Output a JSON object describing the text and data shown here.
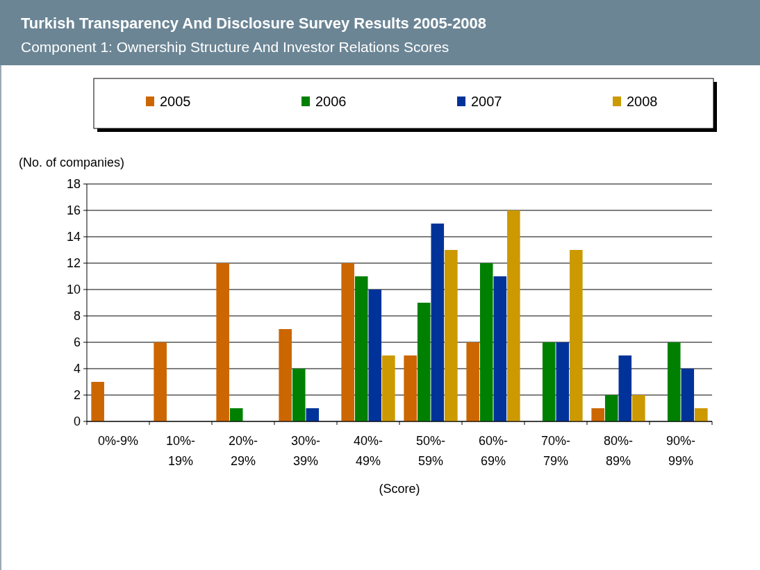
{
  "chart_data": {
    "type": "bar",
    "title": "Turkish Transparency And Disclosure Survey Results 2005-2008",
    "subtitle": "Component 1: Ownership Structure And Investor Relations Scores",
    "xlabel": "(Score)",
    "ylabel": "(No. of companies)",
    "categories": [
      "0%-9%",
      "10%-19%",
      "20%-29%",
      "30%-39%",
      "40%-49%",
      "50%-59%",
      "60%-69%",
      "70%-79%",
      "80%-89%",
      "90%-99%"
    ],
    "series": [
      {
        "name": "2005",
        "color": "#cc6600",
        "values": [
          3,
          6,
          12,
          7,
          12,
          5,
          6,
          0,
          1,
          0
        ]
      },
      {
        "name": "2006",
        "color": "#008000",
        "values": [
          0,
          0,
          1,
          4,
          11,
          9,
          12,
          6,
          2,
          6
        ]
      },
      {
        "name": "2007",
        "color": "#003399",
        "values": [
          0,
          0,
          0,
          1,
          10,
          15,
          11,
          6,
          5,
          4
        ]
      },
      {
        "name": "2008",
        "color": "#cc9900",
        "values": [
          0,
          0,
          0,
          0,
          5,
          13,
          16,
          13,
          2,
          1
        ]
      }
    ],
    "ylim": [
      0,
      18
    ],
    "yticks": [
      0,
      2,
      4,
      6,
      8,
      10,
      12,
      14,
      16,
      18
    ],
    "grid": "y",
    "legend": "top"
  }
}
